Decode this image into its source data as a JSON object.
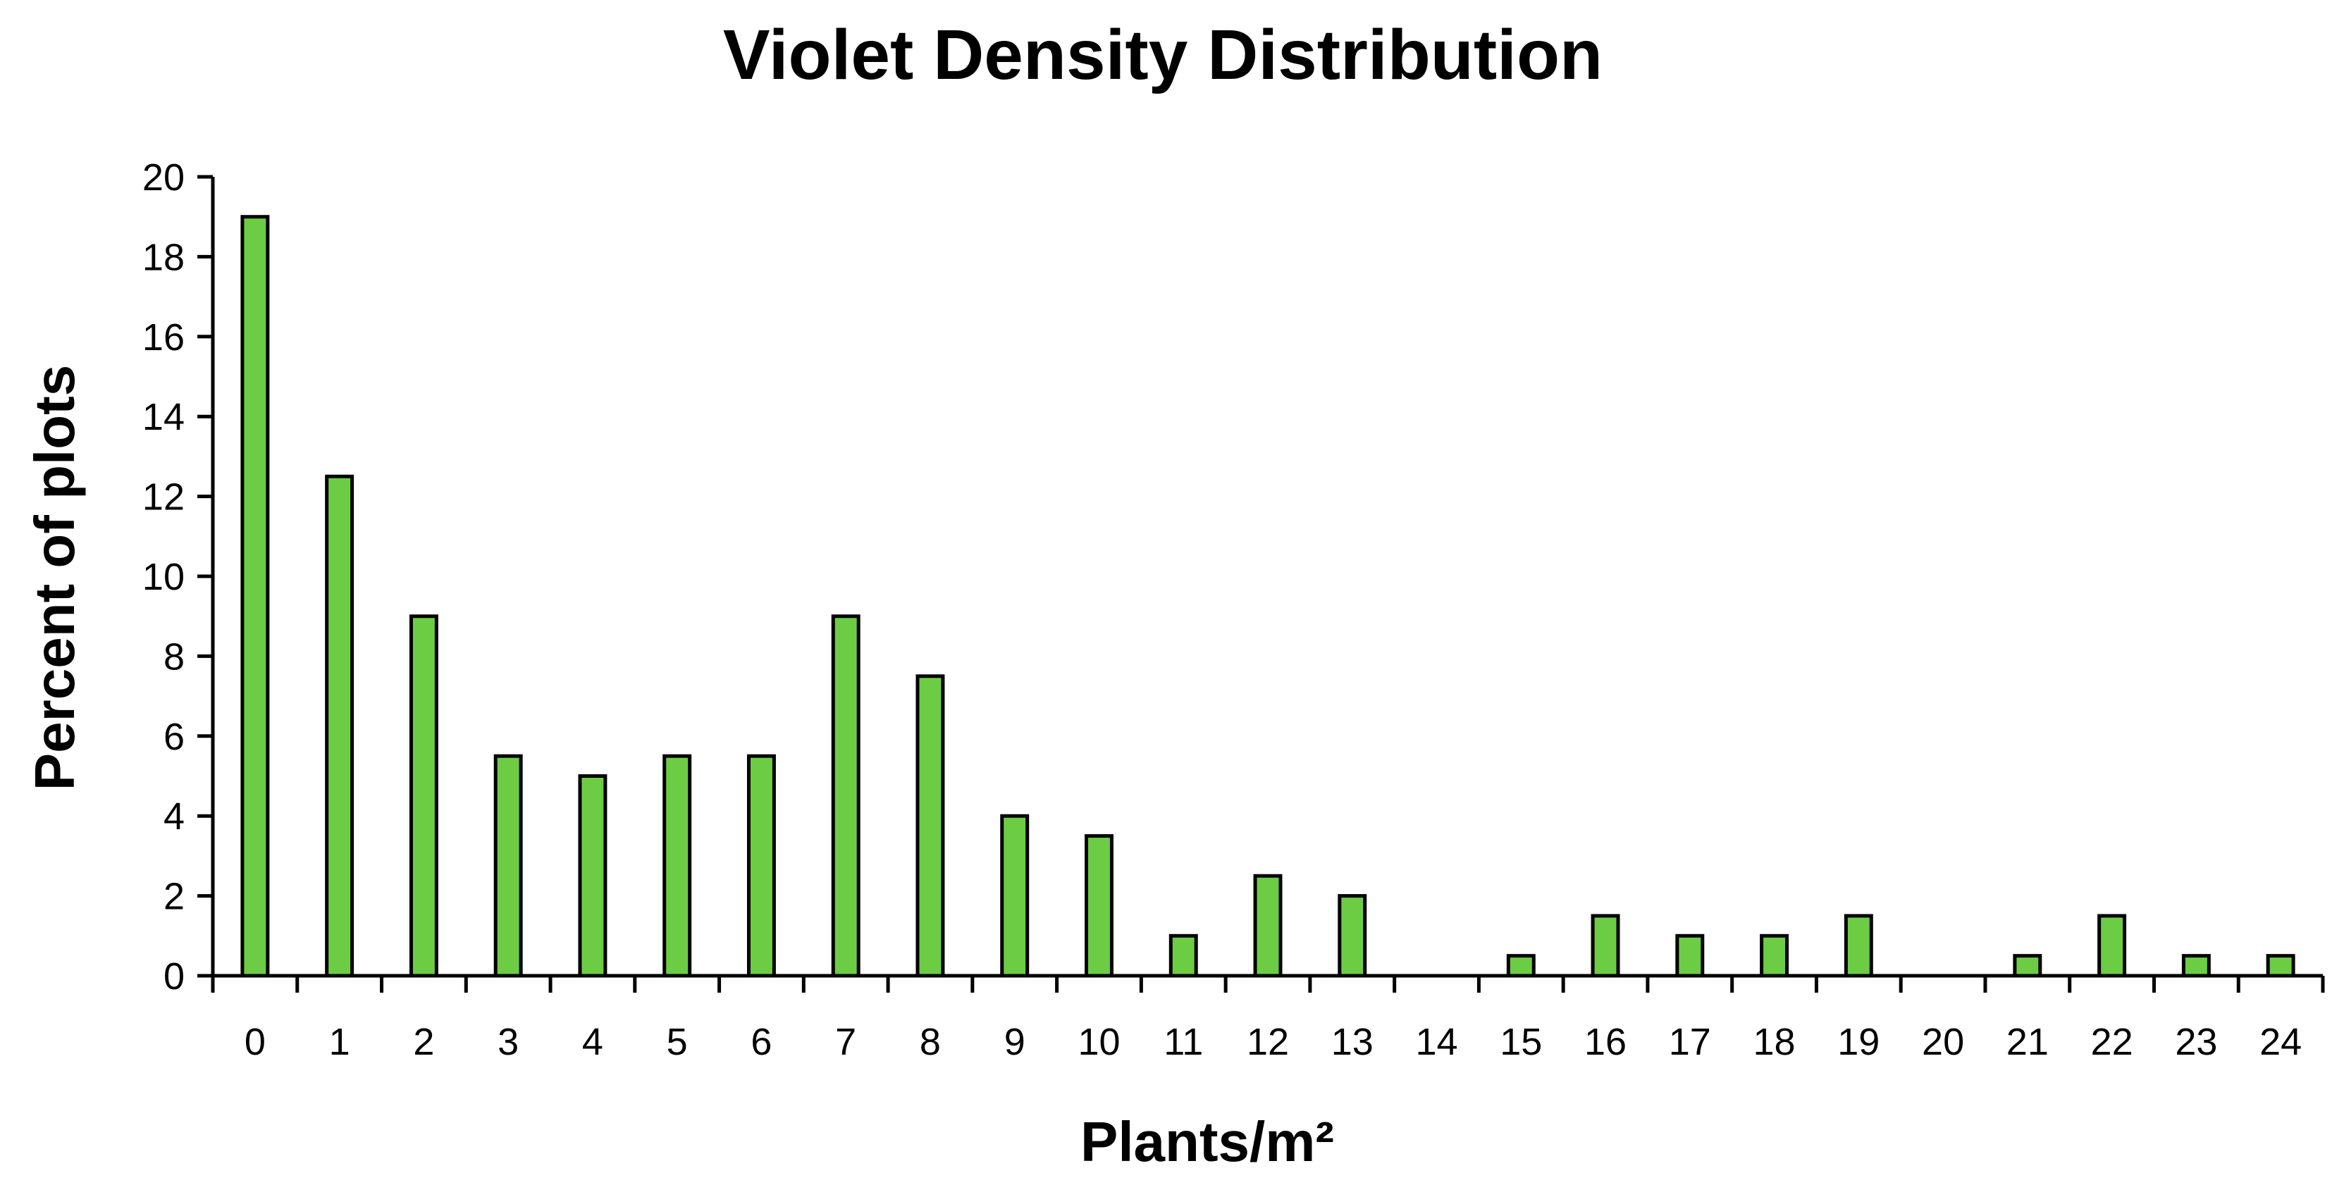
{
  "chart_data": {
    "type": "bar",
    "title": "Violet Density Distribution",
    "xlabel": "Plants/m²",
    "ylabel": "Percent of plots",
    "categories": [
      "0",
      "1",
      "2",
      "3",
      "4",
      "5",
      "6",
      "7",
      "8",
      "9",
      "10",
      "11",
      "12",
      "13",
      "14",
      "15",
      "16",
      "17",
      "18",
      "19",
      "20",
      "21",
      "22",
      "23",
      "24"
    ],
    "values": [
      19,
      12.5,
      9,
      5.5,
      5,
      5.5,
      5.5,
      9,
      7.5,
      4,
      3.5,
      1,
      2.5,
      2,
      0,
      0.5,
      1.5,
      1,
      1,
      1.5,
      0,
      0.5,
      1.5,
      0.5,
      0.5
    ],
    "ylim": [
      0,
      20
    ],
    "yticks": [
      "0",
      "2",
      "4",
      "6",
      "8",
      "10",
      "12",
      "14",
      "16",
      "18",
      "20"
    ],
    "grid": false,
    "legend": "none",
    "colors": {
      "bar_fill": "#6ccd44",
      "bar_stroke": "#000000",
      "axis": "#000000"
    }
  }
}
